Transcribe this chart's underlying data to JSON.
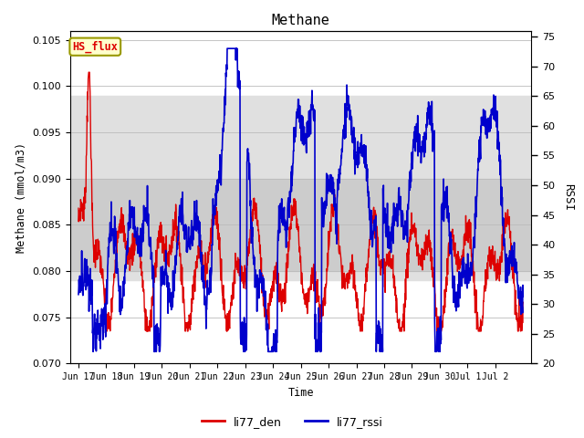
{
  "title": "Methane",
  "xlabel": "Time",
  "ylabel_left": "Methane (mmol/m3)",
  "ylabel_right": "RSSI",
  "ylim_left": [
    0.07,
    0.106
  ],
  "ylim_right": [
    20,
    76
  ],
  "yticks_left": [
    0.07,
    0.075,
    0.08,
    0.085,
    0.09,
    0.095,
    0.1,
    0.105
  ],
  "yticks_right": [
    20,
    25,
    30,
    35,
    40,
    45,
    50,
    55,
    60,
    65,
    70,
    75
  ],
  "xticklabels": [
    "Jun 17",
    "Jun 18",
    "Jun 19",
    "Jun 20",
    "Jun 21",
    "Jun 22",
    "Jun 23",
    "Jun 24",
    "Jun 25",
    "Jun 26",
    "Jun 27",
    "Jun 28",
    "Jun 29",
    "Jun 30",
    "Jul 1",
    "Jul 2"
  ],
  "hspan_outer": [
    0.079,
    0.099
  ],
  "hspan_outer_color": "#e0e0e0",
  "hspan_inner": [
    0.08,
    0.09
  ],
  "hspan_inner_color": "#cccccc",
  "annotation_box_text": "HS_flux",
  "annotation_box_facecolor": "#ffffcc",
  "annotation_box_edgecolor": "#999900",
  "line_red_color": "#dd0000",
  "line_blue_color": "#0000cc",
  "legend_labels": [
    "li77_den",
    "li77_rssi"
  ],
  "background_color": "#ffffff",
  "grid_color": "#bbbbbb"
}
